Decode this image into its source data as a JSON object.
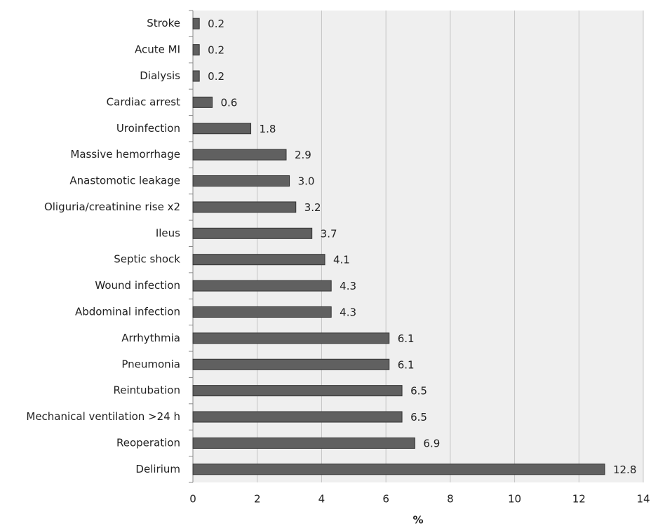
{
  "chart_data": {
    "type": "hbar",
    "xlabel": "%",
    "categories": [
      "Stroke",
      "Acute MI",
      "Dialysis",
      "Cardiac arrest",
      "Uroinfection",
      "Massive hemorrhage",
      "Anastomotic leakage",
      "Oliguria/creatinine rise x2",
      "Ileus",
      "Septic shock",
      "Wound infection",
      "Abdominal infection",
      "Arrhythmia",
      "Pneumonia",
      "Reintubation",
      "Mechanical ventilation >24 h",
      "Reoperation",
      "Delirium"
    ],
    "values": [
      0.2,
      0.2,
      0.2,
      0.6,
      1.8,
      2.9,
      3.0,
      3.2,
      3.7,
      4.1,
      4.3,
      4.3,
      6.1,
      6.1,
      6.5,
      6.5,
      6.9,
      12.8
    ],
    "value_labels": [
      "0.2",
      "0.2",
      "0.2",
      "0.6",
      "1.8",
      "2.9",
      "3.0",
      "3.2",
      "3.7",
      "4.1",
      "4.3",
      "4.3",
      "6.1",
      "6.1",
      "6.5",
      "6.5",
      "6.9",
      "12.8"
    ],
    "color": "#606060",
    "xlim": [
      0,
      14
    ],
    "xticks": [
      0,
      2,
      4,
      6,
      8,
      10,
      12,
      14
    ],
    "grid": true
  }
}
